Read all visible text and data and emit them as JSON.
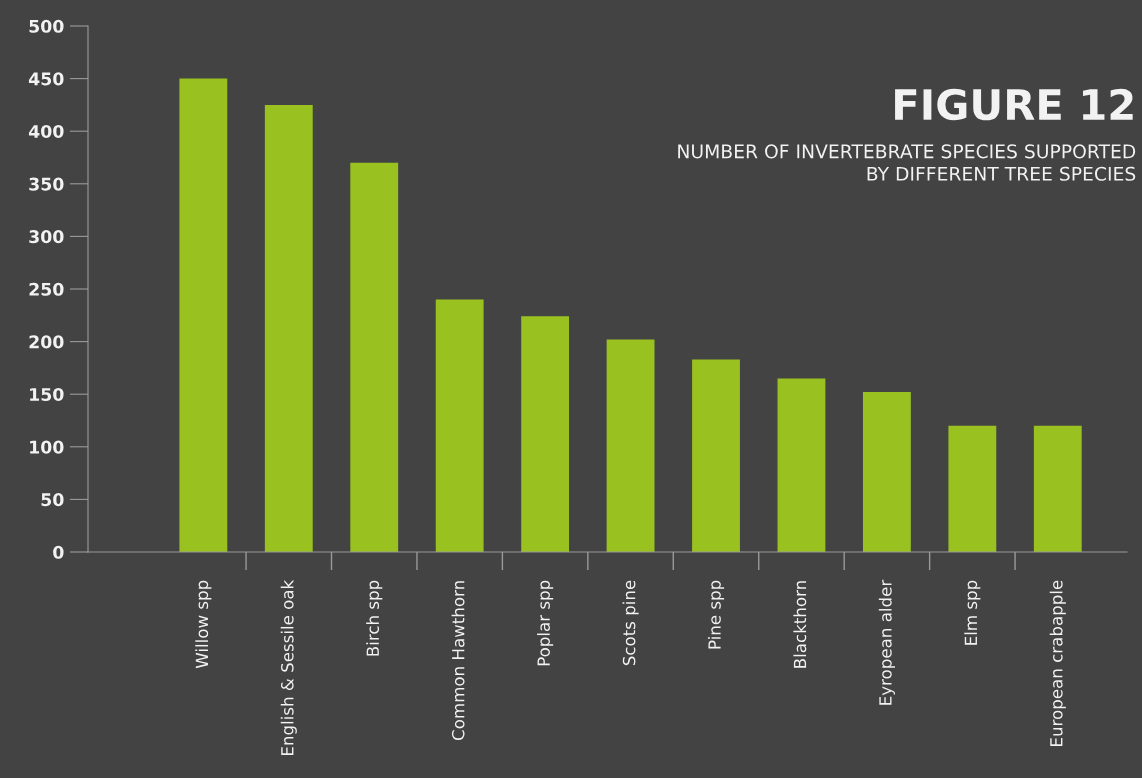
{
  "chart_data": {
    "type": "bar",
    "title": "FIGURE 12",
    "subtitle": "NUMBER OF INVERTEBRATE SPECIES SUPPORTED\nBY DIFFERENT TREE SPECIES",
    "categories": [
      "Willow spp",
      "English & Sessile oak",
      "Birch spp",
      "Common Hawthorn",
      "Poplar spp",
      "Scots pine",
      "Pine spp",
      "Blackthorn",
      "Eyropean alder",
      "Elm spp",
      "European crabapple"
    ],
    "values": [
      450,
      425,
      370,
      240,
      224,
      202,
      183,
      165,
      152,
      120,
      120
    ],
    "color": "#99c221",
    "ylim": [
      0,
      500
    ],
    "yticks": [
      0,
      50,
      100,
      150,
      200,
      250,
      300,
      350,
      400,
      450,
      500
    ],
    "grid": false
  }
}
